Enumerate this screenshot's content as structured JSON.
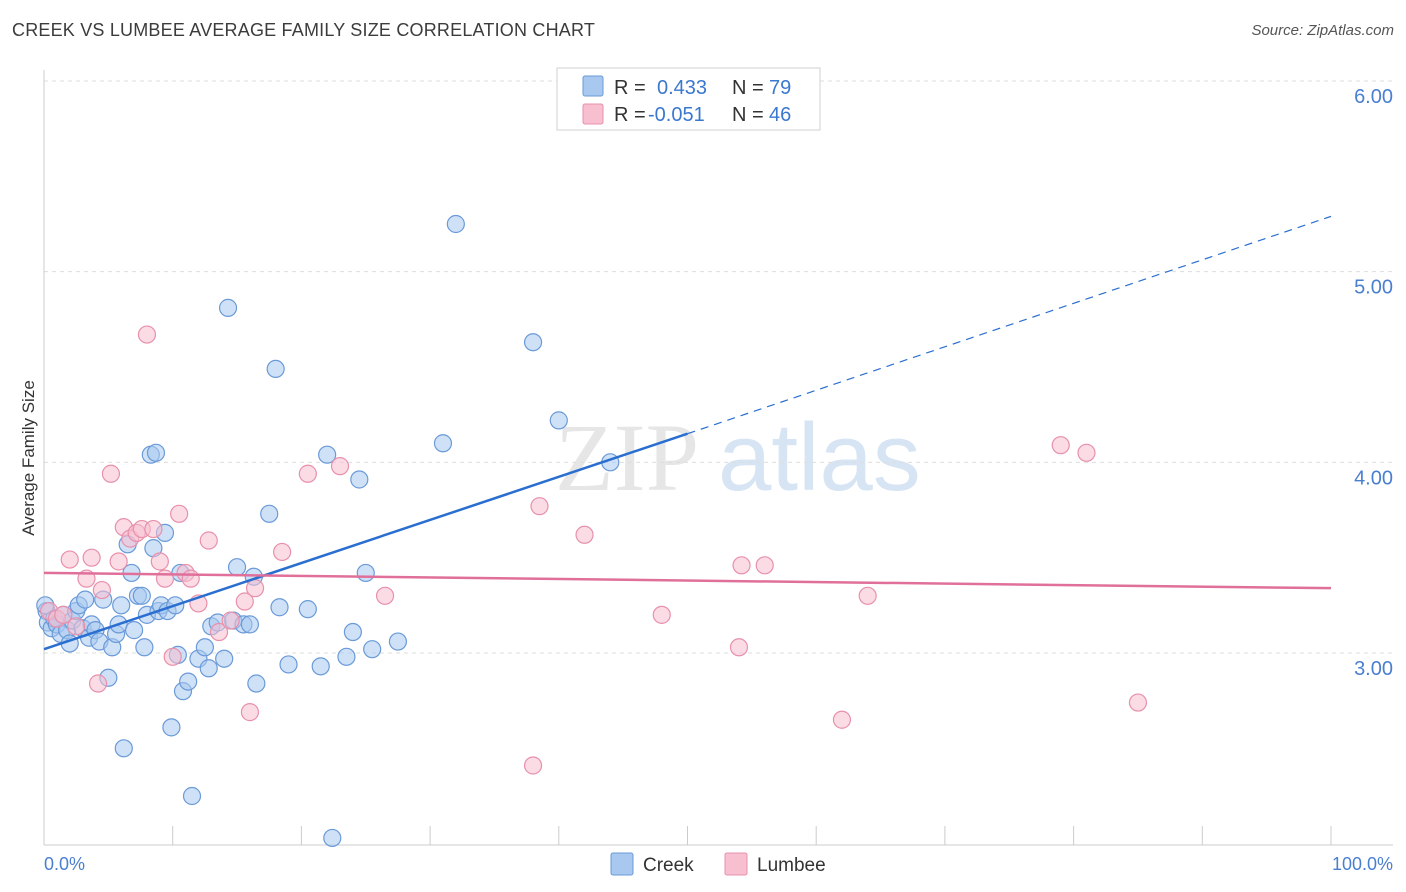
{
  "title": "CREEK VS LUMBEE AVERAGE FAMILY SIZE CORRELATION CHART",
  "source": "Source: ZipAtlas.com",
  "watermark": {
    "part1": "ZIP",
    "part2": "atlas"
  },
  "colors": {
    "creek_fill": "#a8c8f0",
    "creek_stroke": "#6a9ad8",
    "creek_line": "#2a6fd0",
    "lumbee_fill": "#f7bfd0",
    "lumbee_stroke": "#e890ac",
    "lumbee_line": "#e0709a",
    "accent_text": "#4a7fd0",
    "grid": "#dddddd"
  },
  "chart_data": {
    "type": "scatter",
    "title": "CREEK VS LUMBEE AVERAGE FAMILY SIZE CORRELATION CHART",
    "xlabel": "",
    "ylabel": "Average Family Size",
    "xlim": [
      0,
      100
    ],
    "ylim": [
      2.0,
      6.1
    ],
    "x_tick_labels": {
      "min": "0.0%",
      "max": "100.0%"
    },
    "y_ticks": [
      3.0,
      4.0,
      5.0,
      6.0
    ],
    "y_tick_labels": [
      "3.00",
      "4.00",
      "5.00",
      "6.00"
    ],
    "legend": {
      "position": "top-center",
      "rows": [
        {
          "r_label": "R =",
          "r_value": "0.433",
          "n_label": "N =",
          "n_value": "79"
        },
        {
          "r_label": "R =",
          "r_value": "-0.051",
          "n_label": "N =",
          "n_value": "46"
        }
      ]
    },
    "bottom_legend": [
      "Creek",
      "Lumbee"
    ],
    "series": [
      {
        "name": "Creek",
        "trend": {
          "x0": 0,
          "y0": 3.02,
          "x1": 50,
          "y1": 4.15,
          "dashed_to_x": 100,
          "dashed_to_y": 5.29
        },
        "points": [
          [
            0.2,
            3.22
          ],
          [
            0.3,
            3.16
          ],
          [
            0.6,
            3.13
          ],
          [
            0.8,
            3.18
          ],
          [
            1.0,
            3.15
          ],
          [
            1.3,
            3.1
          ],
          [
            1.5,
            3.2
          ],
          [
            1.8,
            3.12
          ],
          [
            2.0,
            3.05
          ],
          [
            2.2,
            3.17
          ],
          [
            2.5,
            3.22
          ],
          [
            2.7,
            3.25
          ],
          [
            3.0,
            3.13
          ],
          [
            3.2,
            3.28
          ],
          [
            3.5,
            3.08
          ],
          [
            3.7,
            3.15
          ],
          [
            4.0,
            3.12
          ],
          [
            4.3,
            3.06
          ],
          [
            4.6,
            3.28
          ],
          [
            5.0,
            2.87
          ],
          [
            5.3,
            3.03
          ],
          [
            5.6,
            3.1
          ],
          [
            5.8,
            3.15
          ],
          [
            6.0,
            3.25
          ],
          [
            6.2,
            2.5
          ],
          [
            6.5,
            3.57
          ],
          [
            6.8,
            3.42
          ],
          [
            7.0,
            3.12
          ],
          [
            7.3,
            3.3
          ],
          [
            7.6,
            3.3
          ],
          [
            7.8,
            3.03
          ],
          [
            8.0,
            3.2
          ],
          [
            8.3,
            4.04
          ],
          [
            8.5,
            3.55
          ],
          [
            8.7,
            4.05
          ],
          [
            8.9,
            3.22
          ],
          [
            9.1,
            3.25
          ],
          [
            9.4,
            3.63
          ],
          [
            9.6,
            3.22
          ],
          [
            9.9,
            2.61
          ],
          [
            10.2,
            3.25
          ],
          [
            10.4,
            2.99
          ],
          [
            10.6,
            3.42
          ],
          [
            10.8,
            2.8
          ],
          [
            11.2,
            2.85
          ],
          [
            11.5,
            2.25
          ],
          [
            12.0,
            2.97
          ],
          [
            12.5,
            3.03
          ],
          [
            12.8,
            2.92
          ],
          [
            13.0,
            3.14
          ],
          [
            13.5,
            3.16
          ],
          [
            14.0,
            2.97
          ],
          [
            14.3,
            4.81
          ],
          [
            14.7,
            3.17
          ],
          [
            15.0,
            3.45
          ],
          [
            15.5,
            3.15
          ],
          [
            16.0,
            3.15
          ],
          [
            16.3,
            3.4
          ],
          [
            16.5,
            2.84
          ],
          [
            17.5,
            3.73
          ],
          [
            18.0,
            4.49
          ],
          [
            18.3,
            3.24
          ],
          [
            19.0,
            2.94
          ],
          [
            20.5,
            3.23
          ],
          [
            21.5,
            2.93
          ],
          [
            22.0,
            4.04
          ],
          [
            22.4,
            2.03
          ],
          [
            23.5,
            2.98
          ],
          [
            24.0,
            3.11
          ],
          [
            24.5,
            3.91
          ],
          [
            25.0,
            3.42
          ],
          [
            25.5,
            3.02
          ],
          [
            27.5,
            3.06
          ],
          [
            31.0,
            4.1
          ],
          [
            32.0,
            5.25
          ],
          [
            38.0,
            4.63
          ],
          [
            40.0,
            4.22
          ],
          [
            44.0,
            4.0
          ],
          [
            0.1,
            3.25
          ]
        ]
      },
      {
        "name": "Lumbee",
        "trend": {
          "x0": 0,
          "y0": 3.42,
          "x1": 100,
          "y1": 3.34
        },
        "points": [
          [
            0.4,
            3.22
          ],
          [
            1.0,
            3.18
          ],
          [
            1.5,
            3.2
          ],
          [
            2.0,
            3.49
          ],
          [
            2.5,
            3.14
          ],
          [
            3.3,
            3.39
          ],
          [
            3.7,
            3.5
          ],
          [
            4.2,
            2.84
          ],
          [
            4.5,
            3.33
          ],
          [
            5.2,
            3.94
          ],
          [
            5.8,
            3.48
          ],
          [
            6.2,
            3.66
          ],
          [
            6.7,
            3.6
          ],
          [
            7.2,
            3.63
          ],
          [
            7.6,
            3.65
          ],
          [
            8.0,
            4.67
          ],
          [
            8.5,
            3.65
          ],
          [
            9.0,
            3.48
          ],
          [
            9.4,
            3.39
          ],
          [
            10.0,
            2.98
          ],
          [
            10.5,
            3.73
          ],
          [
            11.0,
            3.42
          ],
          [
            11.4,
            3.39
          ],
          [
            12.0,
            3.26
          ],
          [
            12.8,
            3.59
          ],
          [
            13.6,
            3.11
          ],
          [
            14.5,
            3.17
          ],
          [
            15.6,
            3.27
          ],
          [
            16.0,
            2.69
          ],
          [
            16.4,
            3.34
          ],
          [
            18.5,
            3.53
          ],
          [
            20.5,
            3.94
          ],
          [
            23.0,
            3.98
          ],
          [
            26.5,
            3.3
          ],
          [
            38.0,
            2.41
          ],
          [
            38.5,
            3.77
          ],
          [
            42.0,
            3.62
          ],
          [
            48.0,
            3.2
          ],
          [
            54.0,
            3.03
          ],
          [
            54.2,
            3.46
          ],
          [
            56.0,
            3.46
          ],
          [
            62.0,
            2.65
          ],
          [
            64.0,
            3.3
          ],
          [
            79.0,
            4.09
          ],
          [
            81.0,
            4.05
          ],
          [
            85.0,
            2.74
          ]
        ]
      }
    ]
  }
}
